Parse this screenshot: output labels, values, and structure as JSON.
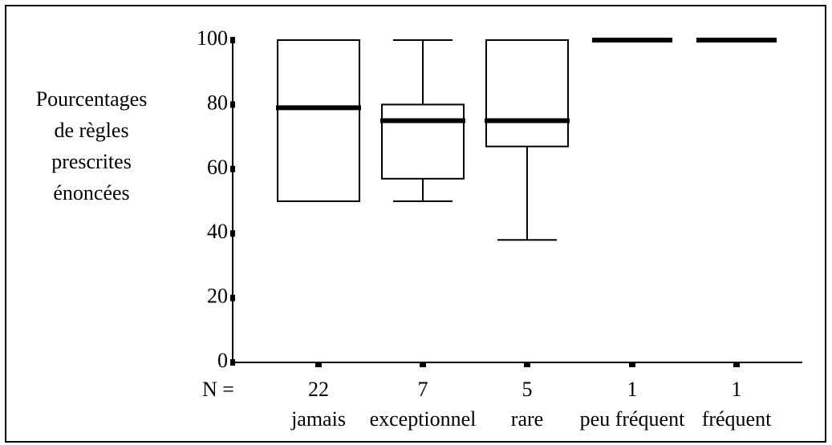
{
  "chart_data": {
    "type": "boxplot",
    "ylabel_lines": [
      "Pourcentages",
      "de règles",
      "prescrites",
      "énoncées"
    ],
    "ylim": [
      0,
      100
    ],
    "yticks": [
      0,
      20,
      40,
      60,
      80,
      100
    ],
    "n_label": "N =",
    "categories": [
      "jamais",
      "exceptionnel",
      "rare",
      "peu fréquent",
      "fréquent"
    ],
    "counts": [
      "22",
      "7",
      "5",
      "1",
      "1"
    ],
    "boxes": [
      {
        "min": 50,
        "q1": 50,
        "median": 79,
        "q3": 100,
        "max": 100
      },
      {
        "min": 50,
        "q1": 57,
        "median": 75,
        "q3": 80,
        "max": 100
      },
      {
        "min": 38,
        "q1": 67,
        "median": 75,
        "q3": 100,
        "max": 100
      },
      {
        "min": 100,
        "q1": 100,
        "median": 100,
        "q3": 100,
        "max": 100
      },
      {
        "min": 100,
        "q1": 100,
        "median": 100,
        "q3": 100,
        "max": 100
      }
    ]
  }
}
